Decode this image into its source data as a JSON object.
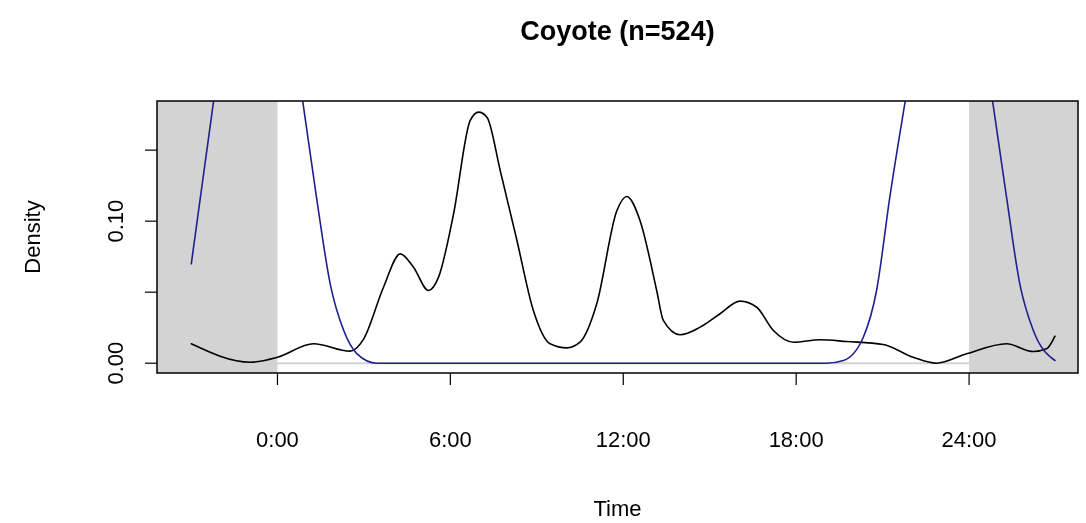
{
  "chart_data": {
    "type": "line",
    "title": "Coyote (n=524)",
    "xlabel": "Time",
    "ylabel": "Density",
    "xlim": [
      -4.18,
      27.78
    ],
    "ylim": [
      -0.0069,
      0.1846
    ],
    "xticks": [
      {
        "value": 0,
        "label": "0:00"
      },
      {
        "value": 6,
        "label": "6:00"
      },
      {
        "value": 12,
        "label": "12:00"
      },
      {
        "value": 18,
        "label": "18:00"
      },
      {
        "value": 24,
        "label": "24:00"
      }
    ],
    "yticks": [
      {
        "value": 0,
        "label": "0.00"
      },
      {
        "value": 0.05,
        "label": null
      },
      {
        "value": 0.1,
        "label": "0.10"
      },
      {
        "value": 0.15,
        "label": null
      }
    ],
    "line_style": "solid",
    "marker": "none",
    "bands": [
      {
        "axis": "x",
        "from": -4.18,
        "to": 0,
        "color": "#d3d3d3"
      },
      {
        "axis": "x",
        "from": 24,
        "to": 27.78,
        "color": "#d3d3d3"
      }
    ],
    "ref_lines": [
      {
        "axis": "y",
        "value": 0,
        "color": "#d3d3d3"
      }
    ],
    "series": [
      {
        "color": "#000000",
        "x": [
          -2.99,
          -0.94,
          0,
          1.25,
          2.52,
          2.99,
          3.68,
          4.26,
          4.72,
          5.24,
          5.59,
          6.11,
          6.69,
          6.98,
          7.27,
          7.73,
          8.31,
          8.88,
          9.46,
          10.04,
          10.5,
          11.08,
          11.78,
          12.12,
          12.58,
          13.16,
          13.39,
          13.97,
          14.67,
          15.36,
          16.05,
          16.63,
          17.21,
          17.91,
          18.83,
          19.75,
          21.02,
          22.06,
          22.87,
          23.91,
          25.3,
          26.23,
          26.69,
          26.98
        ],
        "values": [
          0.0137,
          0.0007,
          0.0042,
          0.0137,
          0.0085,
          0.017,
          0.0535,
          0.077,
          0.0676,
          0.0512,
          0.0606,
          0.105,
          0.171,
          0.1768,
          0.1732,
          0.1357,
          0.0864,
          0.0371,
          0.0137,
          0.0108,
          0.0148,
          0.0418,
          0.1075,
          0.1174,
          0.1005,
          0.0512,
          0.0301,
          0.02,
          0.0254,
          0.0348,
          0.0437,
          0.0394,
          0.023,
          0.0148,
          0.0165,
          0.0153,
          0.0132,
          0.0042,
          0.0,
          0.0066,
          0.0137,
          0.0082,
          0.0101,
          0.019
        ]
      },
      {
        "color": "#202090",
        "x": [
          -2.99,
          -2.22,
          -1.5,
          0.88,
          1.37,
          1.83,
          2.3,
          2.76,
          3.45,
          12,
          19.06,
          19.64,
          20.33,
          20.79,
          21.25,
          21.78,
          23.3,
          24.82,
          25.3,
          25.76,
          26.23,
          26.98
        ],
        "values": [
          0.07,
          0.184,
          null,
          0.184,
          0.1146,
          0.0559,
          0.023,
          0.0066,
          0,
          0,
          0,
          0.0019,
          0.0183,
          0.0512,
          0.1169,
          0.184,
          null,
          0.184,
          0.1169,
          0.0559,
          0.023,
          0.0019
        ]
      }
    ]
  }
}
